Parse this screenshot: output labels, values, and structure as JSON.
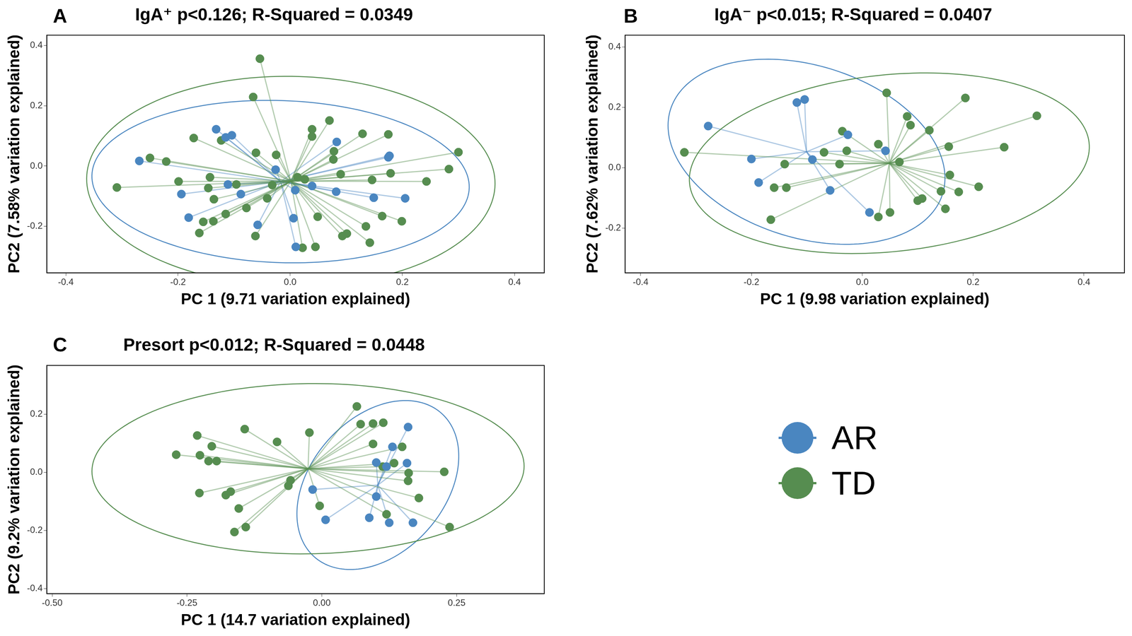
{
  "chart_data": [
    {
      "type": "scatter",
      "panel_label": "A",
      "title": "IgA⁺ p<0.126; R-Squared = 0.0349",
      "x_label": "PC 1 (9.71 variation explained)",
      "y_label": "PC2 (7.58% variation explained)",
      "xlim": [
        -0.434,
        0.453
      ],
      "xticks": [
        -0.4,
        -0.2,
        {
          "value": 0,
          "label": "0.0"
        },
        0.2,
        0.4
      ],
      "ylim": [
        -0.354,
        0.434
      ],
      "yticks": [
        -0.2,
        {
          "value": 0,
          "label": "0.0"
        },
        0.2,
        0.4
      ],
      "series": [
        {
          "name": "AR",
          "color": "#4a86c0",
          "x": [
            -0.269,
            -0.132,
            -0.115,
            -0.104,
            -0.194,
            -0.181,
            -0.111,
            -0.088,
            -0.058,
            -0.026,
            0.009,
            0.006,
            0.01,
            0.039,
            0.083,
            0.082,
            0.149,
            0.177,
            0.175,
            0.205
          ],
          "y": [
            0.017,
            0.122,
            0.095,
            0.102,
            -0.093,
            -0.171,
            -0.061,
            -0.093,
            -0.195,
            -0.012,
            -0.08,
            -0.173,
            -0.268,
            -0.066,
            0.08,
            -0.085,
            -0.105,
            0.034,
            0.029,
            -0.107
          ]
        },
        {
          "name": "TD",
          "color": "#568d50",
          "x": [
            -0.309,
            -0.25,
            -0.221,
            -0.199,
            -0.172,
            -0.143,
            -0.146,
            -0.136,
            -0.155,
            -0.162,
            -0.137,
            -0.123,
            -0.115,
            -0.096,
            -0.078,
            -0.066,
            -0.054,
            -0.061,
            -0.041,
            -0.032,
            -0.062,
            -0.025,
            0.013,
            0.026,
            0.022,
            0.045,
            0.049,
            0.039,
            0.039,
            0.07,
            0.078,
            0.077,
            0.09,
            0.129,
            0.146,
            0.179,
            0.175,
            0.093,
            0.101,
            0.135,
            0.142,
            0.164,
            0.199,
            0.243,
            0.283,
            0.3
          ],
          "y": [
            -0.071,
            0.027,
            0.015,
            -0.051,
            0.093,
            -0.037,
            -0.073,
            -0.11,
            -0.185,
            -0.222,
            -0.183,
            0.085,
            -0.159,
            -0.061,
            -0.139,
            0.229,
            0.356,
            0.044,
            -0.107,
            -0.063,
            -0.232,
            0.037,
            -0.037,
            -0.044,
            -0.271,
            -0.268,
            -0.168,
            0.122,
            0.098,
            0.151,
            0.049,
            0.022,
            -0.027,
            0.107,
            -0.046,
            -0.024,
            0.105,
            -0.232,
            -0.224,
            -0.2,
            -0.254,
            -0.166,
            -0.183,
            -0.051,
            -0.01,
            0.046
          ]
        }
      ]
    },
    {
      "type": "scatter",
      "panel_label": "B",
      "title": "IgA⁻ p<0.015; R-Squared = 0.0407",
      "x_label": "PC 1 (9.98 variation explained)",
      "y_label": "PC2 (7.62% variation explained)",
      "xlim": [
        -0.428,
        0.473
      ],
      "xticks": [
        -0.4,
        -0.2,
        {
          "value": 0,
          "label": "0.0"
        },
        0.2,
        0.4
      ],
      "ylim": [
        -0.348,
        0.439
      ],
      "yticks": [
        -0.2,
        {
          "value": 0,
          "label": "0.0"
        },
        0.2,
        0.4
      ],
      "series": [
        {
          "name": "AR",
          "color": "#4a86c0",
          "x": [
            -0.278,
            -0.118,
            -0.104,
            -0.2,
            -0.187,
            -0.09,
            -0.058,
            -0.026,
            0.013,
            0.042
          ],
          "y": [
            0.138,
            0.216,
            0.226,
            0.029,
            -0.049,
            0.027,
            -0.075,
            0.109,
            -0.148,
            0.056
          ]
        },
        {
          "name": "TD",
          "color": "#568d50",
          "x": [
            -0.321,
            -0.165,
            -0.159,
            -0.137,
            -0.14,
            -0.069,
            -0.041,
            -0.036,
            -0.028,
            0.029,
            0.044,
            0.081,
            0.087,
            0.121,
            0.029,
            0.05,
            0.067,
            0.1,
            0.108,
            0.142,
            0.158,
            0.156,
            0.15,
            0.174,
            0.186,
            0.21,
            0.256,
            0.315
          ],
          "y": [
            0.051,
            -0.172,
            -0.066,
            -0.066,
            0.012,
            0.051,
            0.012,
            0.121,
            0.056,
            0.078,
            0.248,
            0.17,
            0.141,
            0.124,
            -0.163,
            -0.148,
            0.019,
            -0.109,
            -0.102,
            -0.078,
            -0.024,
            0.07,
            -0.136,
            -0.08,
            0.231,
            -0.063,
            0.068,
            0.172
          ]
        }
      ]
    },
    {
      "type": "scatter",
      "panel_label": "C",
      "title": "Presort p<0.012; R-Squared = 0.0448",
      "x_label": "PC 1 (14.7 variation explained)",
      "y_label": "PC2 (9.2% variation explained)",
      "legend": "right",
      "xlim": [
        -0.51,
        0.4125
      ],
      "xticks": [
        {
          "value": -0.5,
          "label": "-0.50"
        },
        -0.25,
        {
          "value": 0,
          "label": "0.00"
        },
        0.25
      ],
      "ylim": [
        -0.417,
        0.368
      ],
      "yticks": [
        -0.4,
        -0.2,
        {
          "value": 0,
          "label": "0.0"
        },
        0.2
      ],
      "series": [
        {
          "name": "AR",
          "color": "#4a86c0",
          "x": [
            0.16,
            0.131,
            0.101,
            0.12,
            0.158,
            -0.017,
            0.101,
            0.007,
            0.088,
            0.125,
            0.169
          ],
          "y": [
            0.156,
            0.088,
            0.034,
            0.02,
            0.032,
            -0.059,
            -0.083,
            -0.163,
            -0.156,
            -0.173,
            -0.173
          ]
        },
        {
          "name": "TD",
          "color": "#568d50",
          "x": [
            -0.27,
            -0.231,
            -0.226,
            -0.204,
            -0.21,
            -0.195,
            -0.227,
            -0.178,
            -0.169,
            -0.154,
            -0.162,
            -0.141,
            -0.143,
            -0.083,
            -0.058,
            -0.062,
            -0.023,
            -0.004,
            0.065,
            0.072,
            0.095,
            0.114,
            0.095,
            0.149,
            0.113,
            0.134,
            0.161,
            0.16,
            0.18,
            0.12,
            0.227,
            0.237
          ],
          "y": [
            0.061,
            0.127,
            0.059,
            0.09,
            0.039,
            0.039,
            -0.071,
            -0.078,
            -0.066,
            -0.124,
            -0.205,
            -0.188,
            0.149,
            0.105,
            -0.027,
            -0.046,
            0.137,
            -0.115,
            0.227,
            0.166,
            0.168,
            0.171,
            0.098,
            0.088,
            0.02,
            0.032,
            -0.002,
            -0.029,
            -0.088,
            -0.144,
            0.002,
            -0.188
          ]
        }
      ]
    }
  ]
}
